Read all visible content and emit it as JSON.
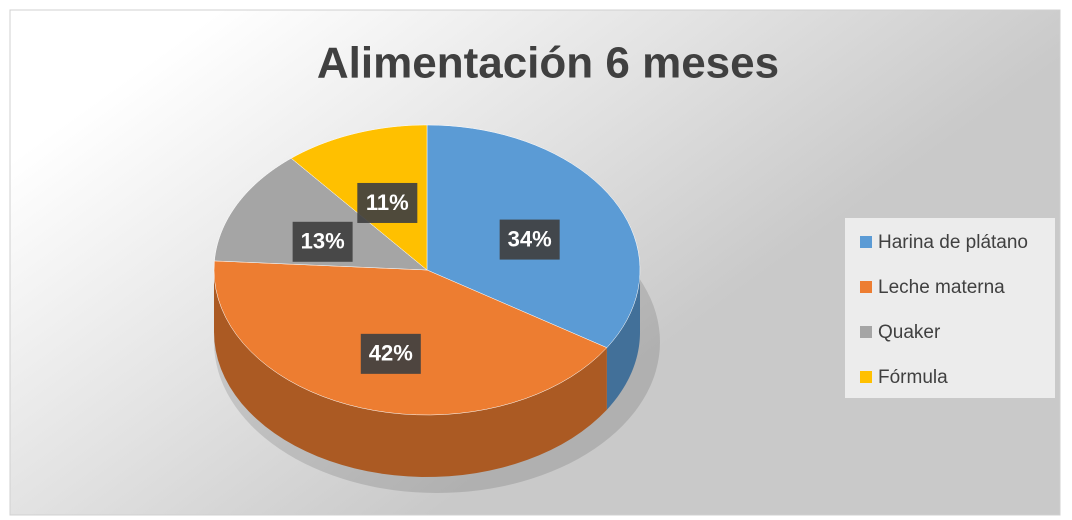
{
  "chart_data": {
    "type": "pie",
    "title": "Alimentación 6 meses",
    "categories": [
      "Harina de plátano",
      "Leche materna",
      "Quaker",
      "Fórmula"
    ],
    "values": [
      34,
      42,
      13,
      11
    ],
    "value_labels": [
      "34%",
      "42%",
      "13%",
      "11%"
    ],
    "colors": [
      "#5b9bd5",
      "#ed7d31",
      "#a5a5a5",
      "#ffc000"
    ],
    "legend": "right"
  }
}
